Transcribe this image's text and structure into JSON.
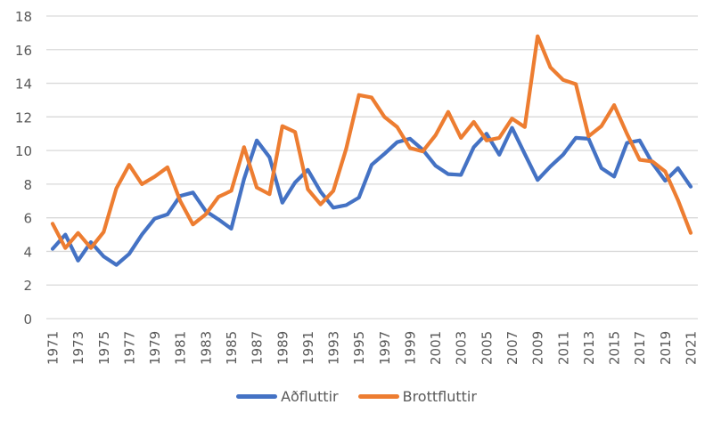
{
  "chart_data": {
    "type": "line",
    "title": "",
    "xlabel": "",
    "ylabel": "",
    "ylim": [
      0,
      18
    ],
    "yticks": [
      0,
      2,
      4,
      6,
      8,
      10,
      12,
      14,
      16,
      18
    ],
    "grid": true,
    "legend_position": "bottom",
    "x": [
      1971,
      1972,
      1973,
      1974,
      1975,
      1976,
      1977,
      1978,
      1979,
      1980,
      1981,
      1982,
      1983,
      1984,
      1985,
      1986,
      1987,
      1988,
      1989,
      1990,
      1991,
      1992,
      1993,
      1994,
      1995,
      1996,
      1997,
      1998,
      1999,
      2000,
      2001,
      2002,
      2003,
      2004,
      2005,
      2006,
      2007,
      2008,
      2009,
      2010,
      2011,
      2012,
      2013,
      2014,
      2015,
      2016,
      2017,
      2018,
      2019,
      2020,
      2021
    ],
    "xtick_labels": [
      "1971",
      "1973",
      "1975",
      "1977",
      "1979",
      "1981",
      "1983",
      "1985",
      "1987",
      "1989",
      "1991",
      "1993",
      "1995",
      "1997",
      "1999",
      "2001",
      "2003",
      "2005",
      "2007",
      "2009",
      "2011",
      "2013",
      "2015",
      "2017",
      "2019",
      "2021"
    ],
    "series": [
      {
        "name": "Aðfluttir",
        "color": "#4472C4",
        "values": [
          4.15,
          5.0,
          3.45,
          4.55,
          3.7,
          3.2,
          3.85,
          5.0,
          5.95,
          6.2,
          7.3,
          7.5,
          6.4,
          5.9,
          5.35,
          8.3,
          10.6,
          9.6,
          6.9,
          8.1,
          8.85,
          7.55,
          6.6,
          6.75,
          7.2,
          9.15,
          9.8,
          10.5,
          10.7,
          10.05,
          9.1,
          8.6,
          8.55,
          10.2,
          11.0,
          9.75,
          11.35,
          9.8,
          8.25,
          9.05,
          9.75,
          10.75,
          10.7,
          8.95,
          8.45,
          10.45,
          10.6,
          9.25,
          8.2,
          8.95,
          7.85
        ]
      },
      {
        "name": "Brottfluttir",
        "color": "#ED7D31",
        "values": [
          5.65,
          4.2,
          5.1,
          4.2,
          5.15,
          7.75,
          9.15,
          8.0,
          8.45,
          9.0,
          7.0,
          5.6,
          6.2,
          7.25,
          7.6,
          10.2,
          7.8,
          7.4,
          11.45,
          11.1,
          7.7,
          6.8,
          7.6,
          10.1,
          13.3,
          13.15,
          12.0,
          11.4,
          10.15,
          9.95,
          10.9,
          12.3,
          10.75,
          11.7,
          10.6,
          10.75,
          11.9,
          11.4,
          16.8,
          14.95,
          14.2,
          13.95,
          10.85,
          11.45,
          12.7,
          11.0,
          9.45,
          9.35,
          8.75,
          7.05,
          5.1
        ]
      }
    ]
  },
  "legend": {
    "items": [
      {
        "label": "Aðfluttir",
        "color": "#4472C4"
      },
      {
        "label": "Brottfluttir",
        "color": "#ED7D31"
      }
    ]
  },
  "style": {
    "gridline_color": "#D9D9D9",
    "tick_color": "#595959"
  }
}
